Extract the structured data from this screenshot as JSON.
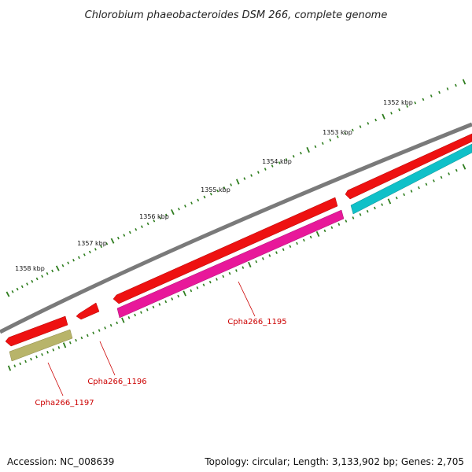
{
  "title": "Chlorobium phaeobacteroides DSM 266, complete genome",
  "footer": {
    "accession": "Accession: NC_008639",
    "summary": "Topology: circular; Length: 3,133,902 bp; Genes: 2,705"
  },
  "colors": {
    "backbone": "#7a7a7a",
    "tick": "#2e7d1e",
    "label": "#cc0000",
    "cds": "#ee1111",
    "gene_magenta": "#e8189a",
    "gene_cyan": "#10c0c8",
    "gene_olive": "#b8b46a"
  },
  "ticks": [
    {
      "kbp": 1352,
      "label": "1352 kbp"
    },
    {
      "kbp": 1353,
      "label": "1353 kbp"
    },
    {
      "kbp": 1354,
      "label": "1354 kbp"
    },
    {
      "kbp": 1355,
      "label": "1355 kbp"
    },
    {
      "kbp": 1356,
      "label": "1356 kbp"
    },
    {
      "kbp": 1357,
      "label": "1357 kbp"
    },
    {
      "kbp": 1358,
      "label": "1358 kbp"
    }
  ],
  "gene_labels": [
    {
      "id": "Cpha266_1195",
      "label": "Cpha266_1195"
    },
    {
      "id": "Cpha266_1196",
      "label": "Cpha266_1196"
    },
    {
      "id": "Cpha266_1197",
      "label": "Cpha266_1197"
    }
  ]
}
